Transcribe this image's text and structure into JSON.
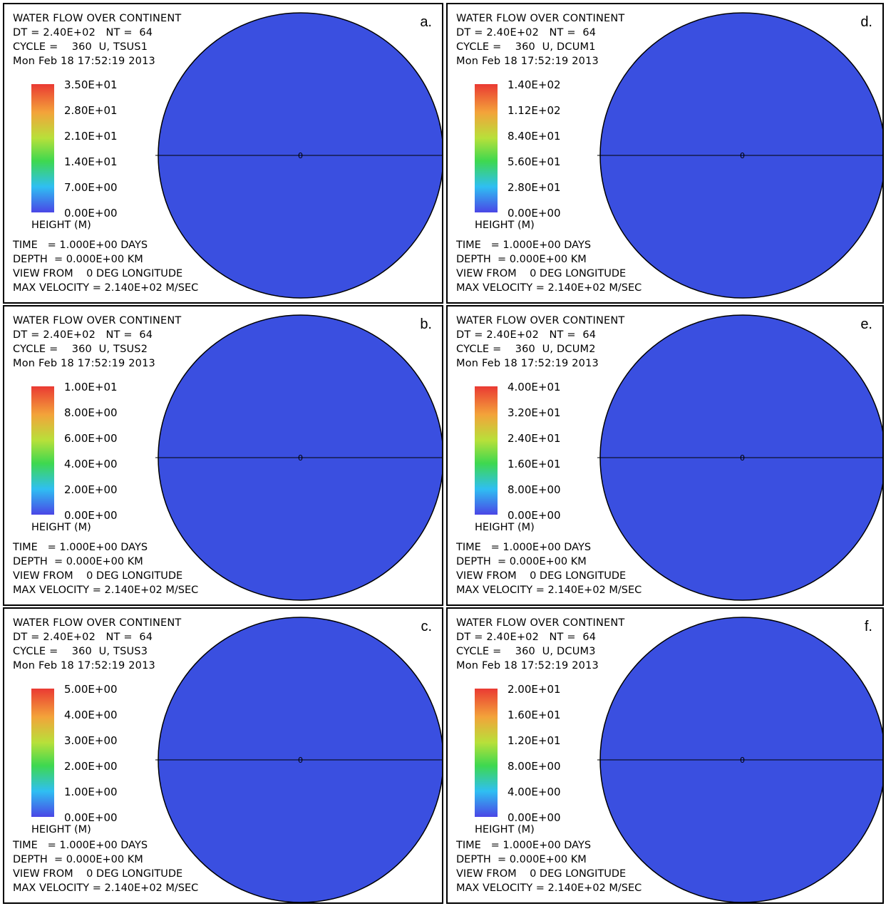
{
  "panels": [
    {
      "letter": "a.",
      "header": [
        "WATER FLOW OVER CONTINENT",
        "DT = 2.40E+02   NT =  64",
        "CYCLE =    360  U, TSUS1",
        "Mon Feb 18 17:52:19 2013"
      ],
      "ticks": [
        "3.50E+01",
        "2.80E+01",
        "2.10E+01",
        "1.40E+01",
        "7.00E+00",
        "0.00E+00"
      ],
      "units": "HEIGHT (M)",
      "footer": [
        "TIME   = 1.000E+00 DAYS",
        "DEPTH  = 0.000E+00 KM",
        "VIEW FROM    0 DEG LONGITUDE",
        "MAX VELOCITY = 2.140E+02 M/SEC"
      ],
      "equator_label": "0"
    },
    {
      "letter": "b.",
      "header": [
        "WATER FLOW OVER CONTINENT",
        "DT = 2.40E+02   NT =  64",
        "CYCLE =    360  U, TSUS2",
        "Mon Feb 18 17:52:19 2013"
      ],
      "ticks": [
        "1.00E+01",
        "8.00E+00",
        "6.00E+00",
        "4.00E+00",
        "2.00E+00",
        "0.00E+00"
      ],
      "units": "HEIGHT (M)",
      "footer": [
        "TIME   = 1.000E+00 DAYS",
        "DEPTH  = 0.000E+00 KM",
        "VIEW FROM    0 DEG LONGITUDE",
        "MAX VELOCITY = 2.140E+02 M/SEC"
      ],
      "equator_label": "0"
    },
    {
      "letter": "c.",
      "header": [
        "WATER FLOW OVER CONTINENT",
        "DT = 2.40E+02   NT =  64",
        "CYCLE =    360  U, TSUS3",
        "Mon Feb 18 17:52:19 2013"
      ],
      "ticks": [
        "5.00E+00",
        "4.00E+00",
        "3.00E+00",
        "2.00E+00",
        "1.00E+00",
        "0.00E+00"
      ],
      "units": "HEIGHT (M)",
      "footer": [
        "TIME   = 1.000E+00 DAYS",
        "DEPTH  = 0.000E+00 KM",
        "VIEW FROM    0 DEG LONGITUDE",
        "MAX VELOCITY = 2.140E+02 M/SEC"
      ],
      "equator_label": "0"
    },
    {
      "letter": "d.",
      "header": [
        "WATER FLOW OVER CONTINENT",
        "DT = 2.40E+02   NT =  64",
        "CYCLE =    360  U, DCUM1",
        "Mon Feb 18 17:52:19 2013"
      ],
      "ticks": [
        "1.40E+02",
        "1.12E+02",
        "8.40E+01",
        "5.60E+01",
        "2.80E+01",
        "0.00E+00"
      ],
      "units": "HEIGHT (M)",
      "footer": [
        "TIME   = 1.000E+00 DAYS",
        "DEPTH  = 0.000E+00 KM",
        "VIEW FROM    0 DEG LONGITUDE",
        "MAX VELOCITY = 2.140E+02 M/SEC"
      ],
      "equator_label": "0"
    },
    {
      "letter": "e.",
      "header": [
        "WATER FLOW OVER CONTINENT",
        "DT = 2.40E+02   NT =  64",
        "CYCLE =    360  U, DCUM2",
        "Mon Feb 18 17:52:19 2013"
      ],
      "ticks": [
        "4.00E+01",
        "3.20E+01",
        "2.40E+01",
        "1.60E+01",
        "8.00E+00",
        "0.00E+00"
      ],
      "units": "HEIGHT (M)",
      "footer": [
        "TIME   = 1.000E+00 DAYS",
        "DEPTH  = 0.000E+00 KM",
        "VIEW FROM    0 DEG LONGITUDE",
        "MAX VELOCITY = 2.140E+02 M/SEC"
      ],
      "equator_label": "0"
    },
    {
      "letter": "f.",
      "header": [
        "WATER FLOW OVER CONTINENT",
        "DT = 2.40E+02   NT =  64",
        "CYCLE =    360  U, DCUM3",
        "Mon Feb 18 17:52:19 2013"
      ],
      "ticks": [
        "2.00E+01",
        "1.60E+01",
        "1.20E+01",
        "8.00E+00",
        "4.00E+00",
        "0.00E+00"
      ],
      "units": "HEIGHT (M)",
      "footer": [
        "TIME   = 1.000E+00 DAYS",
        "DEPTH  = 0.000E+00 KM",
        "VIEW FROM    0 DEG LONGITUDE",
        "MAX VELOCITY = 2.140E+02 M/SEC"
      ],
      "equator_label": "0"
    }
  ],
  "colors": {
    "ocean": "#3a4fe0",
    "high": "#ec3b3b",
    "mid": "#5fe04a",
    "low": "#2fb6f2",
    "warm": "#f5d33a"
  }
}
